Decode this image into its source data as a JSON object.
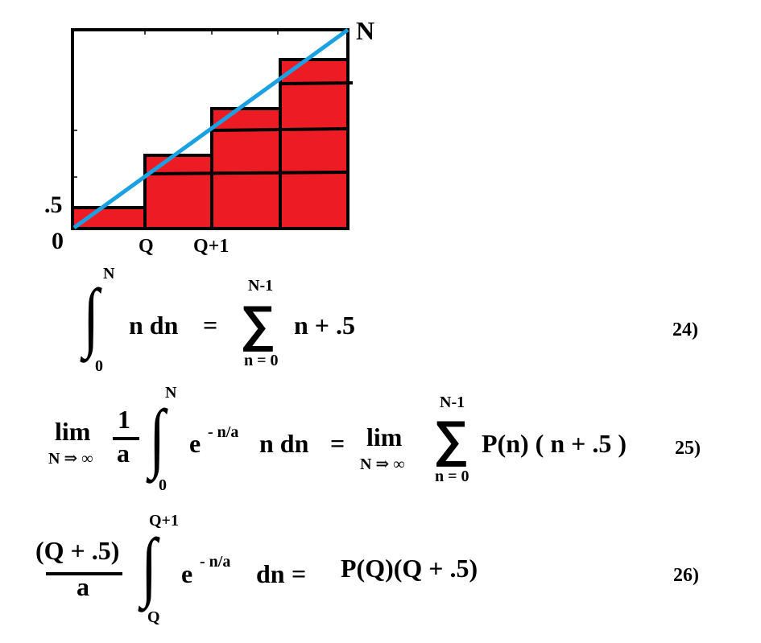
{
  "diagram": {
    "fill_color": "#ed1c24",
    "line_color": "#1ba1e2",
    "labels": {
      "top_right": "N",
      "y_half": ".5",
      "origin": "0",
      "x_q": "Q",
      "x_q1": "Q+1"
    }
  },
  "eq24": {
    "upper": "N",
    "lower": "0",
    "integral": "∫",
    "integrand": "n dn",
    "eq": "=",
    "sum": "∑",
    "sum_upper": "N-1",
    "sum_lower": "n = 0",
    "summand": "n + .5",
    "number": "24)"
  },
  "eq25": {
    "lim": "lim",
    "lim_sub": "N ⇒ ∞",
    "frac_num": "1",
    "frac_den": "a",
    "integral": "∫",
    "upper": "N",
    "lower": "0",
    "base": "e",
    "exponent": "- n/a",
    "integrand": "n dn",
    "eq": "=",
    "lim2": "lim",
    "lim2_sub": "N ⇒ ∞",
    "sum": "∑",
    "sum_upper": "N-1",
    "sum_lower": "n = 0",
    "summand": "P(n) ( n + .5 )",
    "number": "25)"
  },
  "eq26": {
    "frac_num": "(Q + .5)",
    "frac_den": "a",
    "integral": "∫",
    "upper": "Q+1",
    "lower": "Q",
    "base": "e",
    "exponent": "- n/a",
    "integrand": "dn",
    "eq": "=",
    "rhs": "P(Q)(Q + .5)",
    "number": "26)"
  }
}
